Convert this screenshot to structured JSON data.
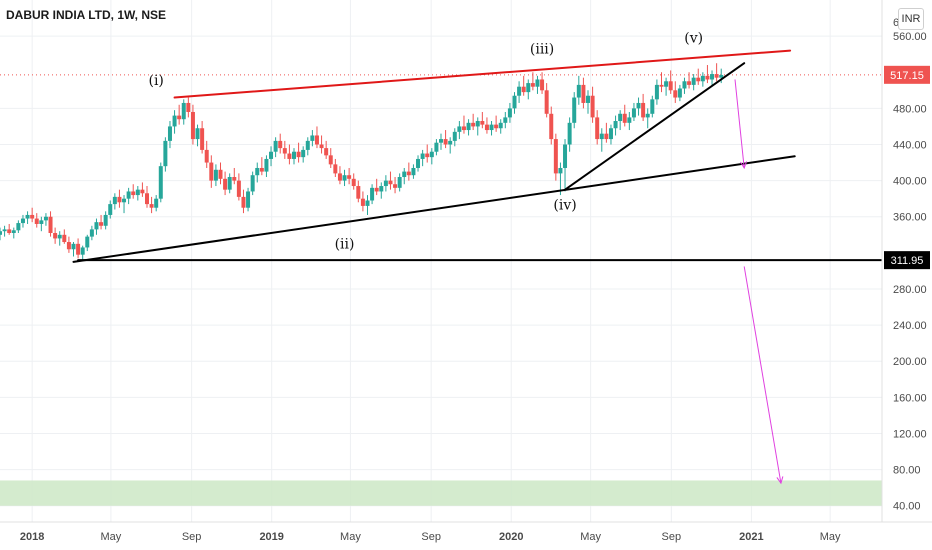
{
  "header": {
    "title": "DABUR INDIA LTD, 1W, NSE",
    "currency": "INR",
    "cut_tick": "6"
  },
  "chart_data": {
    "type": "candlestick",
    "ylim": [
      22,
      600
    ],
    "y_ticks": [
      "560.00",
      "480.00",
      "440.00",
      "400.00",
      "360.00",
      "280.00",
      "240.00",
      "200.00",
      "160.00",
      "120.00",
      "80.00",
      "40.00"
    ],
    "y_tick_values": [
      560,
      480,
      440,
      400,
      360,
      280,
      240,
      200,
      160,
      120,
      80,
      40
    ],
    "x_start": "2017-11-13",
    "x_end": "2021-07-19",
    "x_ticks": [
      {
        "label": "2018",
        "date": "2018-01-01"
      },
      {
        "label": "May",
        "date": "2018-05-01"
      },
      {
        "label": "Sep",
        "date": "2018-09-01"
      },
      {
        "label": "2019",
        "date": "2019-01-01"
      },
      {
        "label": "May",
        "date": "2019-05-01"
      },
      {
        "label": "Sep",
        "date": "2019-09-01"
      },
      {
        "label": "2020",
        "date": "2020-01-01"
      },
      {
        "label": "May",
        "date": "2020-05-01"
      },
      {
        "label": "Sep",
        "date": "2020-09-01"
      },
      {
        "label": "2021",
        "date": "2021-01-01"
      },
      {
        "label": "May",
        "date": "2021-05-01"
      }
    ],
    "last_price": {
      "value": 517.15,
      "label": "517.15"
    },
    "level_label": {
      "value": 311.95,
      "label": "311.95"
    },
    "colors": {
      "up": "#26a69a",
      "down": "#ef5350",
      "resistance": "#e01818",
      "support": "#000000",
      "projection": "#e040e0",
      "zone": "#cde8c6"
    },
    "target_zone": [
      40,
      68
    ],
    "trend_lines": [
      {
        "name": "upper-resistance",
        "color": "resistance",
        "points": [
          [
            "2018-08-06",
            492
          ],
          [
            "2021-03-01",
            544
          ]
        ]
      },
      {
        "name": "lower-support",
        "color": "support",
        "points": [
          [
            "2018-03-05",
            310
          ],
          [
            "2021-03-08",
            427
          ]
        ]
      },
      {
        "name": "inner-support",
        "color": "support",
        "points": [
          [
            "2020-03-23",
            390
          ],
          [
            "2020-12-21",
            530
          ]
        ]
      },
      {
        "name": "horizontal-support",
        "color": "support",
        "points": [
          [
            "2018-03-12",
            311.95
          ],
          [
            "2021-07-19",
            311.95
          ]
        ]
      }
    ],
    "projections": [
      {
        "name": "short-target-arrow",
        "points": [
          [
            "2020-12-07",
            512
          ],
          [
            "2020-12-21",
            414
          ]
        ]
      },
      {
        "name": "long-target-arrow",
        "points": [
          [
            "2020-12-21",
            305
          ],
          [
            "2021-02-15",
            65
          ]
        ]
      }
    ],
    "wave_labels": [
      {
        "text": "(i)",
        "x": "2018-07-09",
        "y": 506
      },
      {
        "text": "(ii)",
        "x": "2019-04-22",
        "y": 325
      },
      {
        "text": "(iii)",
        "x": "2020-02-17",
        "y": 541
      },
      {
        "text": "(iv)",
        "x": "2020-03-23",
        "y": 368
      },
      {
        "text": "(v)",
        "x": "2020-10-05",
        "y": 553
      }
    ],
    "candles": [
      [
        "2017-11-13",
        340,
        348,
        334,
        344
      ],
      [
        "2017-11-20",
        344,
        350,
        338,
        346
      ],
      [
        "2017-11-27",
        346,
        352,
        340,
        342
      ],
      [
        "2017-12-04",
        342,
        348,
        336,
        345
      ],
      [
        "2017-12-11",
        345,
        356,
        342,
        353
      ],
      [
        "2017-12-18",
        353,
        362,
        348,
        358
      ],
      [
        "2017-12-25",
        358,
        366,
        352,
        362
      ],
      [
        "2018-01-01",
        362,
        370,
        354,
        358
      ],
      [
        "2018-01-08",
        358,
        364,
        348,
        352
      ],
      [
        "2018-01-15",
        352,
        360,
        344,
        356
      ],
      [
        "2018-01-22",
        356,
        364,
        350,
        360
      ],
      [
        "2018-01-29",
        360,
        366,
        338,
        342
      ],
      [
        "2018-02-05",
        342,
        348,
        330,
        336
      ],
      [
        "2018-02-12",
        336,
        344,
        328,
        340
      ],
      [
        "2018-02-19",
        340,
        346,
        330,
        332
      ],
      [
        "2018-02-26",
        332,
        338,
        320,
        324
      ],
      [
        "2018-03-05",
        324,
        332,
        316,
        330
      ],
      [
        "2018-03-12",
        330,
        336,
        314,
        318
      ],
      [
        "2018-03-19",
        318,
        328,
        312,
        326
      ],
      [
        "2018-03-26",
        326,
        340,
        322,
        338
      ],
      [
        "2018-04-02",
        338,
        350,
        334,
        346
      ],
      [
        "2018-04-09",
        346,
        358,
        340,
        354
      ],
      [
        "2018-04-16",
        354,
        362,
        346,
        350
      ],
      [
        "2018-04-23",
        350,
        366,
        346,
        362
      ],
      [
        "2018-04-30",
        362,
        378,
        358,
        374
      ],
      [
        "2018-05-07",
        374,
        386,
        368,
        382
      ],
      [
        "2018-05-14",
        382,
        390,
        370,
        376
      ],
      [
        "2018-05-21",
        376,
        384,
        364,
        380
      ],
      [
        "2018-05-28",
        380,
        392,
        374,
        388
      ],
      [
        "2018-06-04",
        388,
        396,
        380,
        384
      ],
      [
        "2018-06-11",
        384,
        394,
        378,
        390
      ],
      [
        "2018-06-18",
        390,
        398,
        382,
        386
      ],
      [
        "2018-06-25",
        386,
        394,
        370,
        374
      ],
      [
        "2018-07-02",
        374,
        382,
        364,
        370
      ],
      [
        "2018-07-09",
        370,
        384,
        366,
        380
      ],
      [
        "2018-07-16",
        380,
        420,
        376,
        416
      ],
      [
        "2018-07-23",
        416,
        448,
        410,
        444
      ],
      [
        "2018-07-30",
        444,
        466,
        436,
        460
      ],
      [
        "2018-08-06",
        460,
        478,
        452,
        472
      ],
      [
        "2018-08-13",
        472,
        484,
        462,
        468
      ],
      [
        "2018-08-20",
        468,
        490,
        462,
        486
      ],
      [
        "2018-08-27",
        486,
        492,
        470,
        476
      ],
      [
        "2018-09-03",
        476,
        484,
        440,
        446
      ],
      [
        "2018-09-10",
        446,
        462,
        438,
        458
      ],
      [
        "2018-09-17",
        458,
        466,
        430,
        434
      ],
      [
        "2018-09-24",
        434,
        444,
        414,
        420
      ],
      [
        "2018-10-01",
        420,
        428,
        392,
        400
      ],
      [
        "2018-10-08",
        400,
        418,
        394,
        412
      ],
      [
        "2018-10-15",
        412,
        420,
        396,
        402
      ],
      [
        "2018-10-22",
        402,
        410,
        384,
        390
      ],
      [
        "2018-10-29",
        390,
        408,
        386,
        404
      ],
      [
        "2018-11-05",
        404,
        414,
        396,
        400
      ],
      [
        "2018-11-12",
        400,
        408,
        378,
        382
      ],
      [
        "2018-11-19",
        382,
        390,
        364,
        370
      ],
      [
        "2018-11-26",
        370,
        392,
        366,
        388
      ],
      [
        "2018-12-03",
        388,
        410,
        384,
        406
      ],
      [
        "2018-12-10",
        406,
        420,
        398,
        414
      ],
      [
        "2018-12-17",
        414,
        426,
        406,
        410
      ],
      [
        "2018-12-24",
        410,
        428,
        404,
        424
      ],
      [
        "2018-12-31",
        424,
        438,
        416,
        432
      ],
      [
        "2019-01-07",
        432,
        448,
        426,
        444
      ],
      [
        "2019-01-14",
        444,
        452,
        430,
        436
      ],
      [
        "2019-01-21",
        436,
        444,
        424,
        430
      ],
      [
        "2019-01-28",
        430,
        440,
        418,
        424
      ],
      [
        "2019-02-04",
        424,
        436,
        418,
        432
      ],
      [
        "2019-02-11",
        432,
        442,
        420,
        426
      ],
      [
        "2019-02-18",
        426,
        438,
        420,
        434
      ],
      [
        "2019-02-25",
        434,
        448,
        428,
        444
      ],
      [
        "2019-03-04",
        444,
        456,
        438,
        450
      ],
      [
        "2019-03-11",
        450,
        460,
        436,
        440
      ],
      [
        "2019-03-18",
        440,
        450,
        430,
        436
      ],
      [
        "2019-03-25",
        436,
        444,
        424,
        428
      ],
      [
        "2019-04-01",
        428,
        436,
        414,
        418
      ],
      [
        "2019-04-08",
        418,
        424,
        404,
        408
      ],
      [
        "2019-04-15",
        408,
        416,
        396,
        400
      ],
      [
        "2019-04-22",
        400,
        412,
        394,
        406
      ],
      [
        "2019-04-29",
        406,
        414,
        396,
        402
      ],
      [
        "2019-05-06",
        402,
        408,
        390,
        394
      ],
      [
        "2019-05-13",
        394,
        400,
        376,
        380
      ],
      [
        "2019-05-20",
        380,
        388,
        366,
        372
      ],
      [
        "2019-05-27",
        372,
        384,
        362,
        378
      ],
      [
        "2019-06-03",
        378,
        396,
        374,
        392
      ],
      [
        "2019-06-10",
        392,
        402,
        384,
        388
      ],
      [
        "2019-06-17",
        388,
        398,
        380,
        394
      ],
      [
        "2019-06-24",
        394,
        406,
        388,
        400
      ],
      [
        "2019-07-01",
        400,
        410,
        390,
        396
      ],
      [
        "2019-07-08",
        396,
        404,
        386,
        392
      ],
      [
        "2019-07-15",
        392,
        408,
        388,
        404
      ],
      [
        "2019-07-22",
        404,
        414,
        396,
        410
      ],
      [
        "2019-07-29",
        410,
        420,
        400,
        406
      ],
      [
        "2019-08-05",
        406,
        418,
        402,
        414
      ],
      [
        "2019-08-12",
        414,
        428,
        410,
        424
      ],
      [
        "2019-08-19",
        424,
        434,
        416,
        430
      ],
      [
        "2019-08-26",
        430,
        440,
        420,
        426
      ],
      [
        "2019-09-02",
        426,
        436,
        418,
        432
      ],
      [
        "2019-09-09",
        432,
        446,
        428,
        442
      ],
      [
        "2019-09-16",
        442,
        452,
        434,
        446
      ],
      [
        "2019-09-23",
        446,
        456,
        436,
        440
      ],
      [
        "2019-09-30",
        440,
        448,
        430,
        444
      ],
      [
        "2019-10-07",
        444,
        458,
        438,
        454
      ],
      [
        "2019-10-14",
        454,
        466,
        446,
        460
      ],
      [
        "2019-10-21",
        460,
        472,
        452,
        456
      ],
      [
        "2019-10-28",
        456,
        468,
        450,
        464
      ],
      [
        "2019-11-04",
        464,
        474,
        456,
        460
      ],
      [
        "2019-11-11",
        460,
        470,
        450,
        466
      ],
      [
        "2019-11-18",
        466,
        476,
        458,
        462
      ],
      [
        "2019-11-25",
        462,
        470,
        452,
        456
      ],
      [
        "2019-12-02",
        456,
        466,
        450,
        462
      ],
      [
        "2019-12-09",
        462,
        472,
        454,
        458
      ],
      [
        "2019-12-16",
        458,
        468,
        452,
        464
      ],
      [
        "2019-12-23",
        464,
        476,
        458,
        470
      ],
      [
        "2019-12-30",
        470,
        486,
        464,
        480
      ],
      [
        "2020-01-06",
        480,
        498,
        474,
        494
      ],
      [
        "2020-01-13",
        494,
        510,
        486,
        504
      ],
      [
        "2020-01-20",
        504,
        516,
        494,
        498
      ],
      [
        "2020-01-27",
        498,
        512,
        490,
        508
      ],
      [
        "2020-02-03",
        508,
        520,
        500,
        504
      ],
      [
        "2020-02-10",
        504,
        516,
        496,
        512
      ],
      [
        "2020-02-17",
        512,
        520,
        496,
        500
      ],
      [
        "2020-02-24",
        500,
        508,
        470,
        474
      ],
      [
        "2020-03-02",
        474,
        482,
        440,
        446
      ],
      [
        "2020-03-09",
        446,
        452,
        400,
        408
      ],
      [
        "2020-03-16",
        408,
        420,
        384,
        414
      ],
      [
        "2020-03-23",
        414,
        446,
        388,
        440
      ],
      [
        "2020-03-30",
        440,
        470,
        432,
        464
      ],
      [
        "2020-04-06",
        464,
        498,
        458,
        492
      ],
      [
        "2020-04-13",
        492,
        516,
        484,
        506
      ],
      [
        "2020-04-20",
        506,
        514,
        480,
        486
      ],
      [
        "2020-04-27",
        486,
        500,
        474,
        494
      ],
      [
        "2020-05-04",
        494,
        504,
        464,
        470
      ],
      [
        "2020-05-11",
        470,
        478,
        440,
        446
      ],
      [
        "2020-05-18",
        446,
        458,
        432,
        452
      ],
      [
        "2020-05-25",
        452,
        464,
        442,
        446
      ],
      [
        "2020-06-01",
        446,
        462,
        440,
        458
      ],
      [
        "2020-06-08",
        458,
        472,
        450,
        466
      ],
      [
        "2020-06-15",
        466,
        478,
        456,
        474
      ],
      [
        "2020-06-22",
        474,
        484,
        460,
        464
      ],
      [
        "2020-06-29",
        464,
        476,
        456,
        470
      ],
      [
        "2020-07-06",
        470,
        486,
        466,
        480
      ],
      [
        "2020-07-13",
        480,
        492,
        472,
        486
      ],
      [
        "2020-07-20",
        486,
        496,
        466,
        470
      ],
      [
        "2020-07-27",
        470,
        480,
        458,
        474
      ],
      [
        "2020-08-03",
        474,
        494,
        470,
        490
      ],
      [
        "2020-08-10",
        490,
        512,
        484,
        506
      ],
      [
        "2020-08-17",
        506,
        520,
        498,
        504
      ],
      [
        "2020-08-24",
        504,
        514,
        494,
        510
      ],
      [
        "2020-08-31",
        510,
        522,
        496,
        500
      ],
      [
        "2020-09-07",
        500,
        510,
        486,
        492
      ],
      [
        "2020-09-14",
        492,
        506,
        488,
        502
      ],
      [
        "2020-09-21",
        502,
        514,
        496,
        510
      ],
      [
        "2020-09-28",
        510,
        520,
        502,
        506
      ],
      [
        "2020-10-05",
        506,
        518,
        500,
        514
      ],
      [
        "2020-10-12",
        514,
        524,
        506,
        510
      ],
      [
        "2020-10-19",
        510,
        520,
        504,
        516
      ],
      [
        "2020-10-26",
        516,
        528,
        508,
        512
      ],
      [
        "2020-11-02",
        512,
        522,
        506,
        518
      ],
      [
        "2020-11-09",
        518,
        530,
        510,
        514
      ],
      [
        "2020-11-16",
        514,
        524,
        508,
        517
      ]
    ]
  }
}
